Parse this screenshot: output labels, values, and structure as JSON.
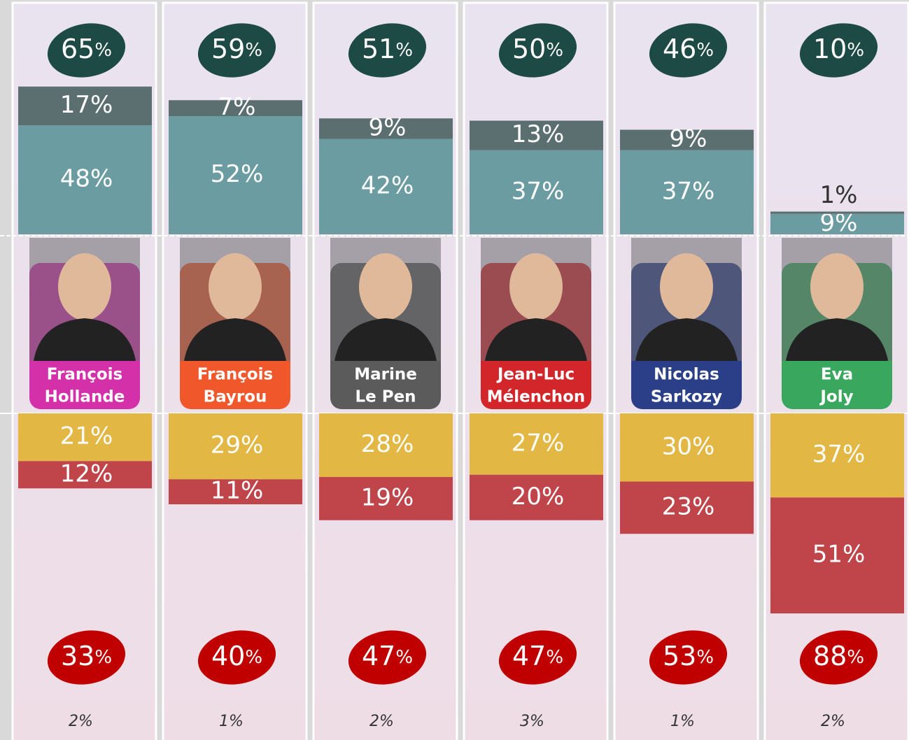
{
  "chart_data": {
    "type": "diverging-bar",
    "categories": [
      [
        "François",
        "Hollande"
      ],
      [
        "François",
        "Bayrou"
      ],
      [
        "Marine",
        "Le Pen"
      ],
      [
        "Jean-Luc",
        "Mélenchon"
      ],
      [
        "Nicolas",
        "Sarkozy"
      ],
      [
        "Eva",
        "Joly"
      ]
    ],
    "category_colors": [
      "#d330a9",
      "#f0582c",
      "#5b5b5b",
      "#d2262b",
      "#2b3f88",
      "#3aa75e"
    ],
    "unit": "%",
    "positive_totals": {
      "color": "#1d4a45",
      "values": [
        65,
        59,
        51,
        50,
        46,
        10
      ]
    },
    "negative_totals": {
      "color": "#c00000",
      "values": [
        33,
        40,
        47,
        47,
        53,
        88
      ]
    },
    "series": [
      {
        "side": "up",
        "color": "#6a9ca1",
        "values": [
          48,
          52,
          42,
          37,
          37,
          9
        ],
        "value_labels": [
          "48%",
          "52%",
          "42%",
          "37%",
          "37%",
          "9%"
        ]
      },
      {
        "side": "up",
        "color": "#5b6e70",
        "values": [
          17,
          7,
          9,
          13,
          9,
          1
        ],
        "value_labels": [
          "17%",
          "7%",
          "9%",
          "13%",
          "9%",
          "1%"
        ]
      },
      {
        "side": "down",
        "color": "#e3b744",
        "values": [
          21,
          29,
          28,
          27,
          30,
          37
        ],
        "value_labels": [
          "21%",
          "29%",
          "28%",
          "27%",
          "30%",
          "37%"
        ]
      },
      {
        "side": "down",
        "color": "#c0454a",
        "values": [
          12,
          11,
          19,
          20,
          23,
          51
        ],
        "value_labels": [
          "12%",
          "11%",
          "19%",
          "20%",
          "23%",
          "51%"
        ]
      }
    ],
    "no_answer": {
      "values": [
        2,
        1,
        2,
        3,
        1,
        2
      ],
      "value_labels": [
        "2%",
        "1%",
        "2%",
        "3%",
        "1%",
        "2%"
      ]
    }
  }
}
